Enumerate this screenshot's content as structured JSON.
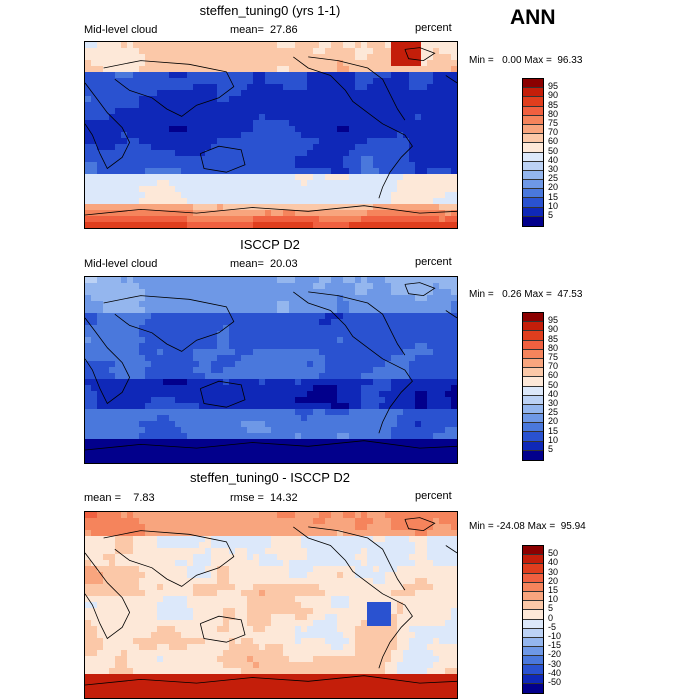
{
  "season": "ANN",
  "panels": [
    {
      "title": "steffen_tuning0 (yrs 1-1)",
      "left_label": "Mid-level cloud",
      "mean_text": "mean=  27.86",
      "units": "percent",
      "minmax": "Min =   0.00 Max =  96.33",
      "field": "model",
      "colorbar": {
        "labels": [
          "95",
          "90",
          "85",
          "80",
          "75",
          "70",
          "60",
          "50",
          "40",
          "30",
          "25",
          "20",
          "15",
          "10",
          "5"
        ],
        "colors": [
          "#8b0000",
          "#c41e0a",
          "#e03e1e",
          "#f06040",
          "#f5845c",
          "#f8a57e",
          "#fbc8a8",
          "#fde8d8",
          "#dce8fa",
          "#bcd2f5",
          "#94b6ee",
          "#6e98e6",
          "#4a78dc",
          "#2a52d0",
          "#0f28b8",
          "#02008c"
        ]
      }
    },
    {
      "title": "ISCCP D2",
      "left_label": "Mid-level cloud",
      "mean_text": "mean=  20.03",
      "units": "percent",
      "minmax": "Min =   0.26 Max =  47.53",
      "field": "obs",
      "colorbar": {
        "labels": [
          "95",
          "90",
          "85",
          "80",
          "75",
          "70",
          "60",
          "50",
          "40",
          "30",
          "25",
          "20",
          "15",
          "10",
          "5"
        ],
        "colors": [
          "#8b0000",
          "#c41e0a",
          "#e03e1e",
          "#f06040",
          "#f5845c",
          "#f8a57e",
          "#fbc8a8",
          "#fde8d8",
          "#dce8fa",
          "#bcd2f5",
          "#94b6ee",
          "#6e98e6",
          "#4a78dc",
          "#2a52d0",
          "#0f28b8",
          "#02008c"
        ]
      }
    },
    {
      "title": "steffen_tuning0 - ISCCP D2",
      "left_label": "mean =    7.83",
      "mean_text": "rmse =  14.32",
      "units": "percent",
      "minmax": "Min = -24.08 Max =  95.94",
      "field": "diff",
      "colorbar": {
        "labels": [
          "50",
          "40",
          "30",
          "20",
          "15",
          "10",
          "5",
          "0",
          "-5",
          "-10",
          "-15",
          "-20",
          "-30",
          "-40",
          "-50"
        ],
        "colors": [
          "#8b0000",
          "#c41e0a",
          "#e03e1e",
          "#f06040",
          "#f5845c",
          "#f8a57e",
          "#fbc8a8",
          "#fde8d8",
          "#dce8fa",
          "#bcd2f5",
          "#94b6ee",
          "#6e98e6",
          "#4a78dc",
          "#2a52d0",
          "#0f28b8",
          "#02008c"
        ]
      }
    }
  ]
}
